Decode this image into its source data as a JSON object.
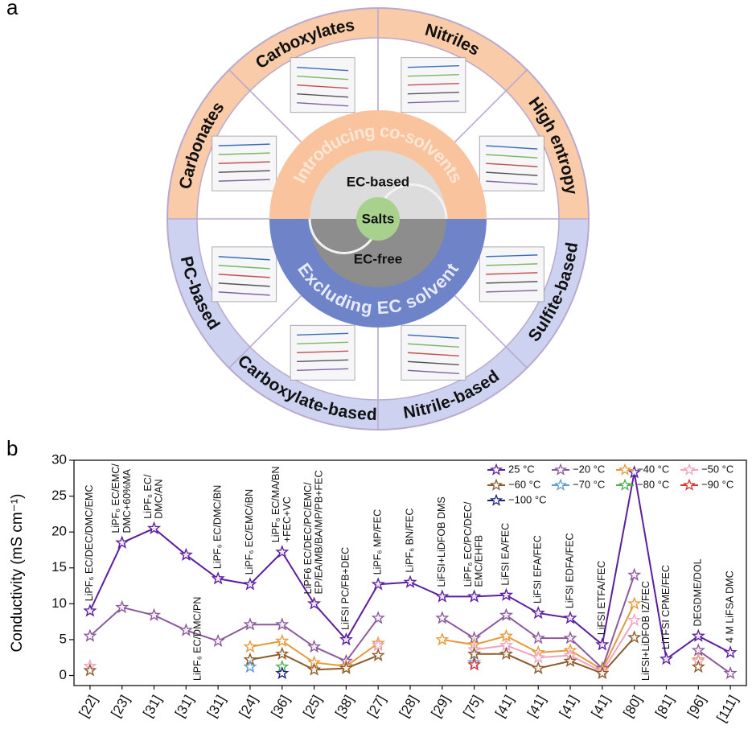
{
  "panel_a": {
    "label": "a",
    "sectors": [
      "Carbonates",
      "Carboxylates",
      "Nitriles",
      "High entropy",
      "Sulfite-based",
      "Nitrile-based",
      "Carboxylate-based",
      "PC-based"
    ],
    "inner": [
      "Introducing co-solvents",
      "Excluding EC solvent"
    ],
    "center": [
      "EC-based",
      "Salts",
      "EC-free"
    ]
  },
  "chart_data": {
    "panel_label": "b",
    "type": "line",
    "y_label": "Conductivity (mS cm⁻¹)",
    "categories": [
      "[22]",
      "[23]",
      "[31]",
      "[31]",
      "[31]",
      "[24]",
      "[36]",
      "[25]",
      "[38]",
      "[27]",
      "[28]",
      "[29]",
      "[75]",
      "[41]",
      "[41]",
      "[41]",
      "[41]",
      "[80]",
      "[81]",
      "[96]",
      "[111]"
    ],
    "annotations": [
      [
        "LiPF₆ EC/DEC/DMC/EMC"
      ],
      [
        "LiPF₆ EC/EMC/",
        "DMC+60%MA"
      ],
      [
        "LiPF₆ EC/",
        "DMC/AN"
      ],
      [
        "LiPF₆ EC/DMC/PN"
      ],
      [
        "LiPF₆ EC/DMC/BN"
      ],
      [
        "LiPF₆ EC/EMC/iBN"
      ],
      [
        "LiPF₆ EC/MA/BN",
        "+FEC+VC"
      ],
      [
        "LiPF6 EC/DEC/PC/EMC/",
        "EP/EA/MB/BA/MP/PB+FEC"
      ],
      [
        "LiFSI PC/FB+DEC"
      ],
      [
        "LiPF₆ MP/FEC"
      ],
      [
        "LiPF₆ BN/FEC"
      ],
      [
        "LiFSI+LiDFOB DMS"
      ],
      [
        "LiPF₆ EC/PC/DEC/",
        "EMC/EHFB"
      ],
      [
        "LiFSI EA/FEC"
      ],
      [
        "LiFSI EFA/FEC"
      ],
      [
        "LiFSI EDFA/FEC"
      ],
      [
        "LiFSI ETFA/FEC"
      ],
      [
        "LiFSI+LiDFOB IZ/FEC"
      ],
      [
        "LiTFSI CPME/FEC"
      ],
      [
        "DEGDME/DOL"
      ],
      [
        "4 M LiFSA DMC"
      ]
    ],
    "ylim": [
      -1.4,
      30
    ],
    "yticks": [
      0,
      5,
      10,
      15,
      20,
      25,
      30
    ],
    "marker": "star",
    "series": [
      {
        "name": "25 °C",
        "color": "#5b1f9e",
        "values": [
          9.0,
          18.5,
          20.5,
          16.8,
          13.5,
          12.7,
          17.2,
          10.0,
          5.0,
          12.7,
          13.0,
          11.0,
          11.0,
          11.2,
          8.7,
          8.0,
          4.3,
          28.3,
          2.3,
          5.5,
          3.2
        ]
      },
      {
        "name": "−20 °C",
        "color": "#8c5a9c",
        "values": [
          5.5,
          9.5,
          8.4,
          6.3,
          4.8,
          7.1,
          7.1,
          4.0,
          2.0,
          8.0,
          null,
          8.0,
          5.2,
          8.4,
          5.2,
          5.2,
          1.0,
          14.0,
          null,
          3.5,
          0.3
        ]
      },
      {
        "name": "−40 °C",
        "color": "#e59a3c",
        "values": [
          null,
          null,
          null,
          null,
          null,
          4.0,
          4.8,
          1.8,
          1.3,
          4.5,
          null,
          5.0,
          4.3,
          5.5,
          3.2,
          3.5,
          0.8,
          10.0,
          null,
          2.2,
          null
        ]
      },
      {
        "name": "−50 °C",
        "color": "#f0a3c3",
        "values": [
          1.3,
          null,
          null,
          null,
          null,
          null,
          null,
          null,
          null,
          4.2,
          null,
          null,
          3.6,
          4.2,
          2.5,
          2.8,
          0.5,
          7.7,
          null,
          2.0,
          null
        ]
      },
      {
        "name": "−60 °C",
        "color": "#8b5a2b",
        "values": [
          0.7,
          null,
          null,
          null,
          null,
          2.2,
          3.0,
          0.8,
          1.0,
          2.8,
          null,
          null,
          3.0,
          3.0,
          1.0,
          2.0,
          0.3,
          5.3,
          null,
          1.2,
          null
        ]
      },
      {
        "name": "−70 °C",
        "color": "#5b9bd5",
        "values": [
          null,
          null,
          null,
          null,
          null,
          1.2,
          null,
          null,
          null,
          null,
          null,
          null,
          1.8,
          null,
          null,
          null,
          null,
          null,
          null,
          null,
          null
        ]
      },
      {
        "name": "−80 °C",
        "color": "#4caf50",
        "values": [
          null,
          null,
          null,
          null,
          null,
          null,
          1.2,
          null,
          null,
          null,
          null,
          null,
          null,
          null,
          null,
          null,
          null,
          null,
          null,
          null,
          null
        ]
      },
      {
        "name": "−90 °C",
        "color": "#d9342b",
        "values": [
          null,
          null,
          null,
          null,
          null,
          null,
          null,
          null,
          null,
          null,
          null,
          null,
          1.5,
          null,
          null,
          null,
          null,
          null,
          null,
          null,
          null
        ]
      },
      {
        "name": "−100 °C",
        "color": "#1a237e",
        "values": [
          null,
          null,
          null,
          null,
          null,
          null,
          0.3,
          null,
          null,
          null,
          null,
          null,
          null,
          null,
          null,
          null,
          null,
          null,
          null,
          null,
          null
        ]
      }
    ]
  }
}
